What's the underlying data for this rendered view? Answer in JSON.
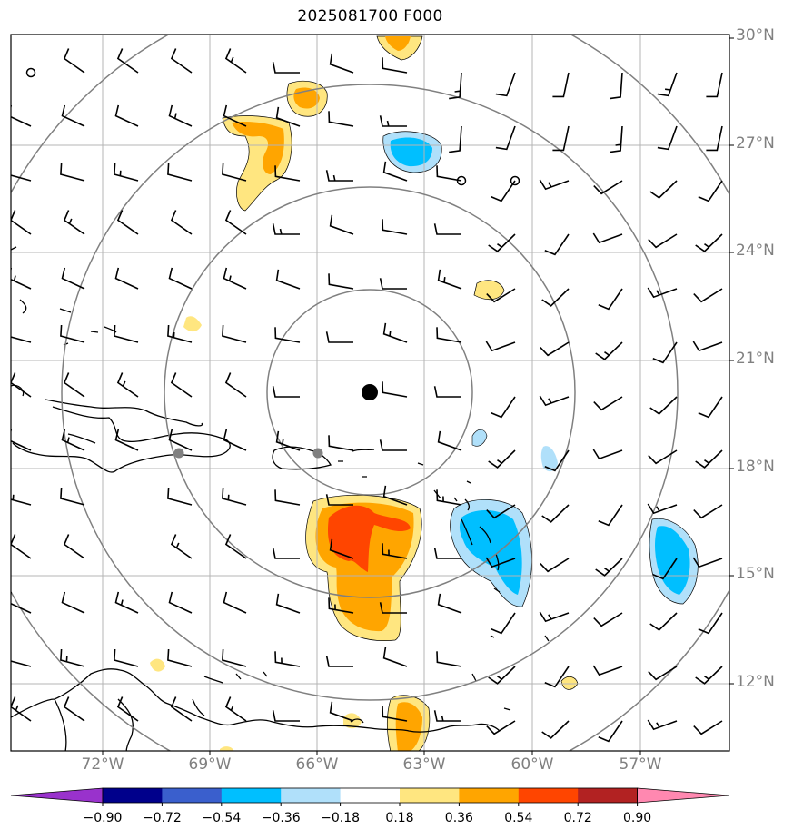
{
  "title": "2025081700 F000",
  "lat_labels": [
    "30°N",
    "27°N",
    "24°N",
    "21°N",
    "18°N",
    "15°N",
    "12°N"
  ],
  "lon_labels": [
    "72°W",
    "69°W",
    "66°W",
    "63°W",
    "60°W",
    "57°W"
  ],
  "colorbar": {
    "levels": [
      "−0.90",
      "−0.72",
      "−0.54",
      "−0.36",
      "−0.18",
      "0.18",
      "0.36",
      "0.54",
      "0.72",
      "0.90"
    ],
    "colors": [
      "#9932cc",
      "#00008b",
      "#3a5fcd",
      "#00bfff",
      "#b0e0fa",
      "#ffffff",
      "#ffe680",
      "#ffa500",
      "#ff4500",
      "#b22222",
      "#ff88b0"
    ]
  },
  "colors": {
    "grid": "#b4b4b4",
    "range_rings": "#808080",
    "coastline": "#000000",
    "barbs": "#000000",
    "center_marker": "#000000",
    "station_markers": "#808080"
  }
}
